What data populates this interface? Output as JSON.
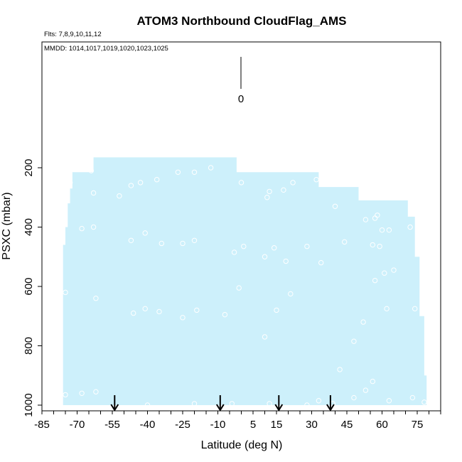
{
  "chart_data": {
    "type": "area",
    "title": "ATOM3 Northbound CloudFlag_AMS",
    "subtitle_flights": "Flts: 7,8,9,10,11,12",
    "subtitle_dates": "MMDD: 1014,1017,1019,1020,1023,1025",
    "xlabel": "Latitude (deg N)",
    "ylabel": "PSXC (mbar)",
    "xlim": [
      -85,
      85
    ],
    "ylim": [
      1000,
      0
    ],
    "y_reversed": true,
    "x_ticks": [
      -85,
      -70,
      -55,
      -40,
      -25,
      -10,
      5,
      15,
      30,
      45,
      60,
      75
    ],
    "y_ticks": [
      200,
      400,
      600,
      800,
      1000
    ],
    "grid": false,
    "legend_value_label": "0",
    "colors": {
      "fill": "#cdf0fb",
      "points": "#ffffff",
      "arrows": "#000000"
    },
    "coverage_top_profile": [
      {
        "lat": -76,
        "psxc": 460
      },
      {
        "lat": -75,
        "psxc": 400
      },
      {
        "lat": -74,
        "psxc": 320
      },
      {
        "lat": -73,
        "psxc": 270
      },
      {
        "lat": -72,
        "psxc": 215
      },
      {
        "lat": -63,
        "psxc": 165
      },
      {
        "lat": -2,
        "psxc": 215
      },
      {
        "lat": 33,
        "psxc": 265
      },
      {
        "lat": 50,
        "psxc": 310
      },
      {
        "lat": 71,
        "psxc": 365
      },
      {
        "lat": 74,
        "psxc": 500
      },
      {
        "lat": 76,
        "psxc": 700
      },
      {
        "lat": 78,
        "psxc": 900
      },
      {
        "lat": 79,
        "psxc": 1000
      }
    ],
    "cloud_points": [
      {
        "lat": -73,
        "psxc": 250
      },
      {
        "lat": -64,
        "psxc": 210
      },
      {
        "lat": -63,
        "psxc": 285
      },
      {
        "lat": -63,
        "psxc": 400
      },
      {
        "lat": -68,
        "psxc": 405
      },
      {
        "lat": -75,
        "psxc": 620
      },
      {
        "lat": -62,
        "psxc": 640
      },
      {
        "lat": -52,
        "psxc": 295
      },
      {
        "lat": -47,
        "psxc": 260
      },
      {
        "lat": -43,
        "psxc": 250
      },
      {
        "lat": -36,
        "psxc": 240
      },
      {
        "lat": -27,
        "psxc": 215
      },
      {
        "lat": -20,
        "psxc": 215
      },
      {
        "lat": -13,
        "psxc": 200
      },
      {
        "lat": -41,
        "psxc": 420
      },
      {
        "lat": -47,
        "psxc": 445
      },
      {
        "lat": -34,
        "psxc": 455
      },
      {
        "lat": -25,
        "psxc": 455
      },
      {
        "lat": -20,
        "psxc": 445
      },
      {
        "lat": -46,
        "psxc": 690
      },
      {
        "lat": -41,
        "psxc": 675
      },
      {
        "lat": -35,
        "psxc": 685
      },
      {
        "lat": -25,
        "psxc": 705
      },
      {
        "lat": -19,
        "psxc": 680
      },
      {
        "lat": -7,
        "psxc": 695
      },
      {
        "lat": -3,
        "psxc": 485
      },
      {
        "lat": 0,
        "psxc": 250
      },
      {
        "lat": 1,
        "psxc": 465
      },
      {
        "lat": -1,
        "psxc": 605
      },
      {
        "lat": 11,
        "psxc": 300
      },
      {
        "lat": 12,
        "psxc": 280
      },
      {
        "lat": 18,
        "psxc": 275
      },
      {
        "lat": 22,
        "psxc": 250
      },
      {
        "lat": 10,
        "psxc": 500
      },
      {
        "lat": 14,
        "psxc": 470
      },
      {
        "lat": 19,
        "psxc": 515
      },
      {
        "lat": 28,
        "psxc": 465
      },
      {
        "lat": 32,
        "psxc": 240
      },
      {
        "lat": 34,
        "psxc": 520
      },
      {
        "lat": 21,
        "psxc": 625
      },
      {
        "lat": 15,
        "psxc": 680
      },
      {
        "lat": 10,
        "psxc": 770
      },
      {
        "lat": 40,
        "psxc": 330
      },
      {
        "lat": 44,
        "psxc": 450
      },
      {
        "lat": 53,
        "psxc": 375
      },
      {
        "lat": 56,
        "psxc": 460
      },
      {
        "lat": 57,
        "psxc": 370
      },
      {
        "lat": 58,
        "psxc": 360
      },
      {
        "lat": 60,
        "psxc": 410
      },
      {
        "lat": 59,
        "psxc": 465
      },
      {
        "lat": 57,
        "psxc": 580
      },
      {
        "lat": 63,
        "psxc": 410
      },
      {
        "lat": 61,
        "psxc": 555
      },
      {
        "lat": 65,
        "psxc": 545
      },
      {
        "lat": 52,
        "psxc": 720
      },
      {
        "lat": 48,
        "psxc": 785
      },
      {
        "lat": 62,
        "psxc": 675
      },
      {
        "lat": 72,
        "psxc": 400
      },
      {
        "lat": 74,
        "psxc": 675
      },
      {
        "lat": 42,
        "psxc": 880
      },
      {
        "lat": 53,
        "psxc": 950
      },
      {
        "lat": 56,
        "psxc": 920
      },
      {
        "lat": 48,
        "psxc": 975
      },
      {
        "lat": 39,
        "psxc": 995
      },
      {
        "lat": 33,
        "psxc": 985
      },
      {
        "lat": 28,
        "psxc": 1000
      },
      {
        "lat": 12,
        "psxc": 995
      },
      {
        "lat": -4,
        "psxc": 995
      },
      {
        "lat": -20,
        "psxc": 995
      },
      {
        "lat": -40,
        "psxc": 1000
      },
      {
        "lat": -62,
        "psxc": 955
      },
      {
        "lat": -68,
        "psxc": 960
      },
      {
        "lat": -75,
        "psxc": 965
      },
      {
        "lat": 63,
        "psxc": 985
      },
      {
        "lat": 73,
        "psxc": 975
      },
      {
        "lat": 78,
        "psxc": 990
      }
    ],
    "arrow_latitudes": [
      -54,
      -9,
      16,
      38
    ]
  }
}
